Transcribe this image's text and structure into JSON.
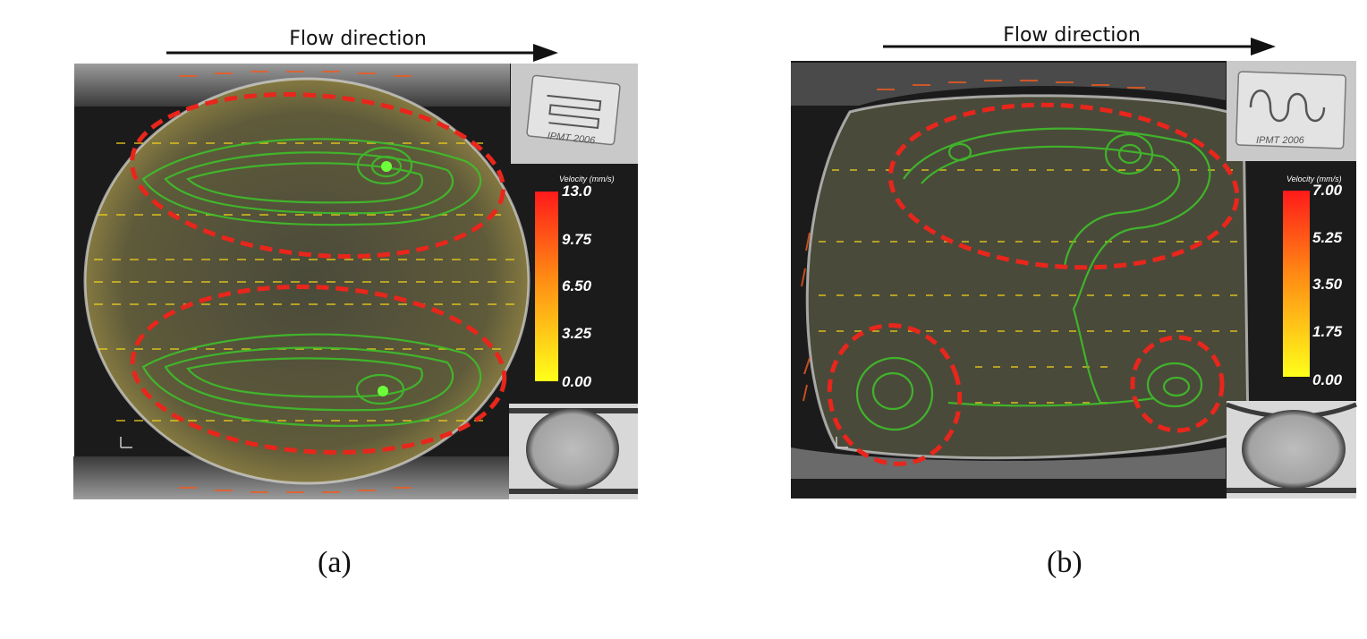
{
  "panels": [
    {
      "flow_label": "Flow direction",
      "caption": "(a)",
      "colorbar": {
        "title": "Velocity (mm/s)",
        "ticks": [
          "13.0",
          "9.75",
          "6.50",
          "3.25",
          "0.00"
        ]
      },
      "chip_text": "IPMT 2006"
    },
    {
      "flow_label": "Flow direction",
      "caption": "(b)",
      "colorbar": {
        "title": "Velocity (mm/s)",
        "ticks": [
          "7.00",
          "5.25",
          "3.50",
          "1.75",
          "0.00"
        ]
      },
      "chip_text": "IPMT 2006"
    }
  ],
  "colors": {
    "vortex_outline": "#e8261c",
    "streamline": "#3fbf2a",
    "background": "#1b1b1b",
    "arrow_slow": "#f2d21a",
    "arrow_fast": "#ef5a1e"
  }
}
